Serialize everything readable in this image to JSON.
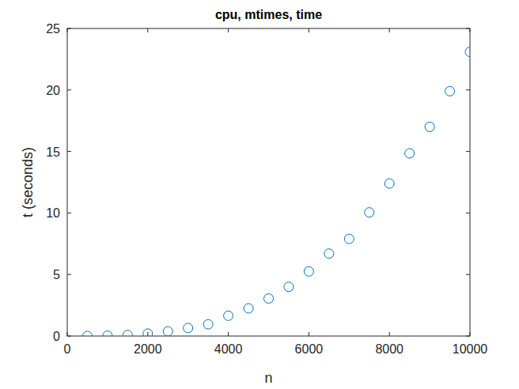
{
  "chart_data": {
    "type": "scatter",
    "title": "cpu, mtimes, time",
    "x_label": "n",
    "y_label": "t (seconds)",
    "x": [
      500,
      1000,
      1500,
      2000,
      2500,
      3000,
      3500,
      4000,
      4500,
      5000,
      5500,
      6000,
      6500,
      7000,
      7500,
      8000,
      8500,
      9000,
      9500,
      10000
    ],
    "values": [
      0.0,
      0.03,
      0.08,
      0.2,
      0.38,
      0.65,
      0.95,
      1.65,
      2.25,
      3.05,
      4.0,
      5.25,
      6.7,
      7.9,
      10.05,
      12.4,
      14.85,
      17.0,
      19.9,
      23.1
    ],
    "color": "#0072bd",
    "marker": "circle",
    "grid": false,
    "xlim": [
      0,
      10000
    ],
    "xticks": [
      0,
      2000,
      4000,
      6000,
      8000,
      10000
    ],
    "ylim": [
      0,
      25
    ],
    "yticks": [
      0,
      5,
      10,
      15,
      20,
      25
    ]
  }
}
